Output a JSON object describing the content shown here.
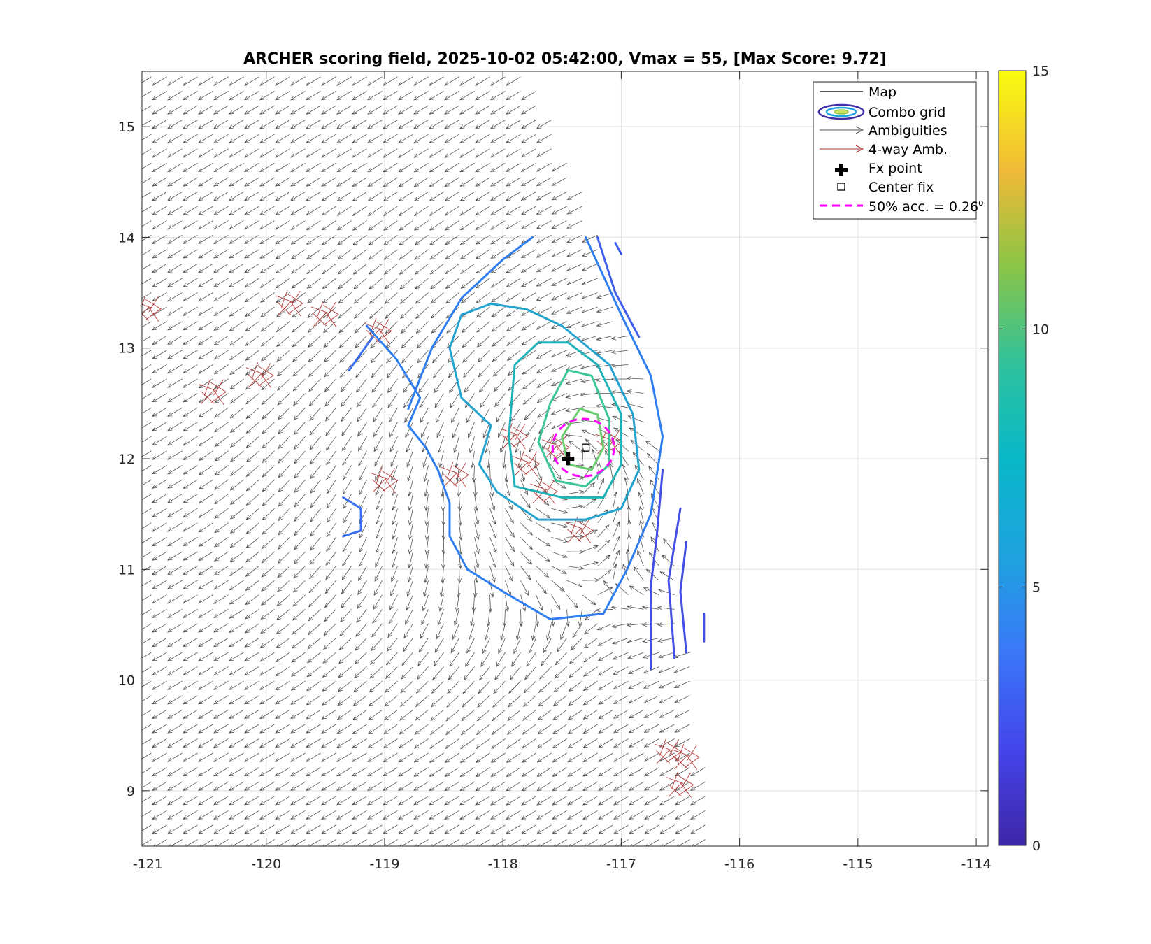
{
  "chart_data": {
    "type": "contour",
    "title": "ARCHER scoring field, 2025-10-02 05:42:00, Vmax = 55, [Max Score: 9.72]",
    "xlim": [
      -121.05,
      -113.9
    ],
    "ylim": [
      8.5,
      15.5
    ],
    "x_ticks": [
      -121,
      -120,
      -119,
      -118,
      -117,
      -116,
      -115,
      -114
    ],
    "x_tick_labels": [
      "-121",
      "-120",
      "-119",
      "-118",
      "-117",
      "-116",
      "-115",
      "-114"
    ],
    "y_ticks": [
      9,
      10,
      11,
      12,
      13,
      14,
      15
    ],
    "y_tick_labels": [
      "9",
      "10",
      "11",
      "12",
      "13",
      "14",
      "15"
    ],
    "grid": true,
    "colorbar": {
      "min": 0,
      "max": 15,
      "ticks": [
        0,
        5,
        10,
        15
      ],
      "tick_labels": [
        "0",
        "5",
        "10",
        "15"
      ]
    },
    "legend": {
      "position": "top-right",
      "entries": [
        {
          "key": "map",
          "label": "Map"
        },
        {
          "key": "combo",
          "label": "Combo grid"
        },
        {
          "key": "amb",
          "label": "Ambiguities"
        },
        {
          "key": "amb4",
          "label": "4-way Amb."
        },
        {
          "key": "fx",
          "label": "Fx point"
        },
        {
          "key": "center",
          "label": "Center fix"
        },
        {
          "key": "acc",
          "label": "50% acc. = 0.26",
          "superscript": "o"
        }
      ]
    },
    "fx_point": {
      "lon": -117.45,
      "lat": 12.0
    },
    "center_fix": {
      "lon": -117.3,
      "lat": 12.1
    },
    "accuracy_circle": {
      "lon": -117.32,
      "lat": 12.1,
      "radius_deg": 0.26
    },
    "swath_right_edge": [
      [
        -117.7,
        15.5
      ],
      [
        -117.2,
        14.2
      ],
      [
        -116.7,
        12.5
      ],
      [
        -116.4,
        10.5
      ],
      [
        -116.15,
        8.5
      ]
    ],
    "vortex": {
      "lon": -117.45,
      "lat": 12.05
    },
    "contours": [
      {
        "level": 4.0,
        "color": "#2f7ef0",
        "points": [
          [
            -119.15,
            13.2
          ],
          [
            -118.9,
            12.9
          ],
          [
            -118.7,
            12.55
          ],
          [
            -118.8,
            12.3
          ],
          [
            -118.65,
            12.1
          ],
          [
            -118.55,
            11.9
          ],
          [
            -118.45,
            11.6
          ],
          [
            -118.45,
            11.3
          ],
          [
            -118.3,
            11.0
          ],
          [
            -118.0,
            10.8
          ],
          [
            -117.6,
            10.55
          ],
          [
            -117.15,
            10.6
          ],
          [
            -116.95,
            11.0
          ],
          [
            -116.75,
            11.5
          ],
          [
            -116.65,
            12.2
          ],
          [
            -116.75,
            12.75
          ],
          [
            -117.0,
            13.3
          ],
          [
            -117.3,
            14.0
          ]
        ]
      },
      {
        "level": 4.0,
        "color": "#2f7ef0",
        "points": [
          [
            -118.8,
            12.45
          ],
          [
            -118.6,
            13.0
          ],
          [
            -118.35,
            13.45
          ],
          [
            -118.0,
            13.8
          ],
          [
            -117.75,
            14.0
          ]
        ]
      },
      {
        "level": 3.5,
        "color": "#3a6ff0",
        "points": [
          [
            -119.3,
            12.8
          ],
          [
            -119.1,
            13.1
          ]
        ]
      },
      {
        "level": 3.5,
        "color": "#3a6ff0",
        "points": [
          [
            -119.35,
            11.65
          ],
          [
            -119.2,
            11.55
          ],
          [
            -119.2,
            11.35
          ],
          [
            -119.35,
            11.3
          ]
        ]
      },
      {
        "level": 5.0,
        "color": "#22a3d0",
        "points": [
          [
            -118.35,
            12.55
          ],
          [
            -118.45,
            13.0
          ],
          [
            -118.35,
            13.3
          ],
          [
            -118.1,
            13.4
          ],
          [
            -117.8,
            13.35
          ],
          [
            -117.5,
            13.2
          ],
          [
            -117.1,
            12.85
          ],
          [
            -116.9,
            12.4
          ],
          [
            -116.85,
            11.9
          ],
          [
            -117.0,
            11.55
          ],
          [
            -117.3,
            11.45
          ],
          [
            -117.7,
            11.45
          ],
          [
            -118.05,
            11.7
          ],
          [
            -118.2,
            11.95
          ],
          [
            -118.1,
            12.3
          ],
          [
            -118.35,
            12.55
          ]
        ]
      },
      {
        "level": 6.5,
        "color": "#1fb2b8",
        "points": [
          [
            -117.95,
            12.2
          ],
          [
            -117.9,
            12.85
          ],
          [
            -117.7,
            13.05
          ],
          [
            -117.45,
            13.05
          ],
          [
            -117.2,
            12.85
          ],
          [
            -117.0,
            12.4
          ],
          [
            -117.0,
            11.95
          ],
          [
            -117.15,
            11.65
          ],
          [
            -117.5,
            11.65
          ],
          [
            -117.9,
            11.75
          ],
          [
            -117.95,
            12.2
          ]
        ]
      },
      {
        "level": 8.0,
        "color": "#3cc49a",
        "points": [
          [
            -117.7,
            12.15
          ],
          [
            -117.6,
            12.5
          ],
          [
            -117.45,
            12.8
          ],
          [
            -117.25,
            12.75
          ],
          [
            -117.1,
            12.35
          ],
          [
            -117.1,
            11.95
          ],
          [
            -117.3,
            11.75
          ],
          [
            -117.55,
            11.8
          ],
          [
            -117.7,
            12.15
          ]
        ]
      },
      {
        "level": 9.0,
        "color": "#6ccc70",
        "points": [
          [
            -117.5,
            12.2
          ],
          [
            -117.35,
            12.45
          ],
          [
            -117.2,
            12.4
          ],
          [
            -117.15,
            12.1
          ],
          [
            -117.25,
            11.9
          ],
          [
            -117.45,
            11.95
          ],
          [
            -117.5,
            12.2
          ]
        ]
      },
      {
        "level": 3.0,
        "color": "#3f5ef0",
        "points": [
          [
            -117.2,
            14.0
          ],
          [
            -117.05,
            13.5
          ],
          [
            -116.85,
            13.1
          ]
        ]
      },
      {
        "level": 2.5,
        "color": "#4350e6",
        "points": [
          [
            -116.65,
            11.9
          ],
          [
            -116.7,
            11.3
          ],
          [
            -116.75,
            10.85
          ],
          [
            -116.75,
            10.1
          ]
        ]
      },
      {
        "level": 2.5,
        "color": "#4350e6",
        "points": [
          [
            -116.5,
            11.55
          ],
          [
            -116.6,
            10.9
          ],
          [
            -116.55,
            10.2
          ]
        ]
      },
      {
        "level": 2.5,
        "color": "#4350e6",
        "points": [
          [
            -116.45,
            11.25
          ],
          [
            -116.5,
            10.8
          ],
          [
            -116.45,
            10.25
          ]
        ]
      },
      {
        "level": 2.5,
        "color": "#4350e6",
        "points": [
          [
            -116.3,
            10.6
          ],
          [
            -116.3,
            10.35
          ]
        ]
      },
      {
        "level": 3.0,
        "color": "#3f5ef0",
        "points": [
          [
            -117.05,
            13.95
          ],
          [
            -117.0,
            13.85
          ]
        ]
      }
    ],
    "four_way_clusters": [
      {
        "lon": -117.8,
        "lat": 11.95
      },
      {
        "lon": -117.65,
        "lat": 11.7
      },
      {
        "lon": -117.55,
        "lat": 12.1
      },
      {
        "lon": -117.9,
        "lat": 12.2
      },
      {
        "lon": -119.0,
        "lat": 11.8
      },
      {
        "lon": -118.4,
        "lat": 11.85
      },
      {
        "lon": -119.8,
        "lat": 13.4
      },
      {
        "lon": -119.5,
        "lat": 13.3
      },
      {
        "lon": -119.05,
        "lat": 13.15
      },
      {
        "lon": -120.45,
        "lat": 12.6
      },
      {
        "lon": -120.05,
        "lat": 12.75
      },
      {
        "lon": -121.0,
        "lat": 13.35
      },
      {
        "lon": -116.6,
        "lat": 9.35
      },
      {
        "lon": -116.45,
        "lat": 9.3
      },
      {
        "lon": -116.5,
        "lat": 9.05
      },
      {
        "lon": -117.1,
        "lat": 12.15
      },
      {
        "lon": -117.35,
        "lat": 11.35
      }
    ]
  }
}
